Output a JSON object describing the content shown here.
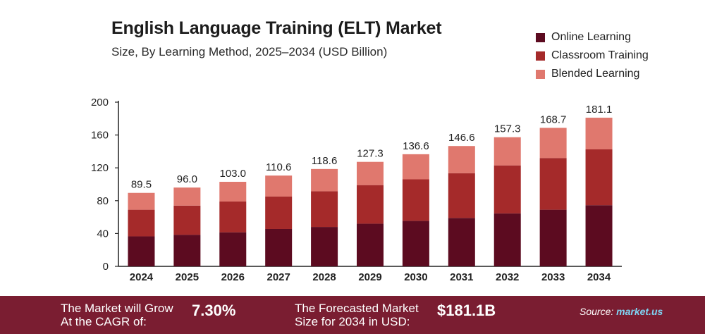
{
  "title": "English Language Training (ELT) Market",
  "subtitle": "Size, By Learning Method, 2025–2034 (USD Billion)",
  "legend": {
    "items": [
      {
        "label": "Online Learning",
        "color": "#5c0b20"
      },
      {
        "label": "Classroom Training",
        "color": "#a52a2a"
      },
      {
        "label": "Blended Learning",
        "color": "#e0786e"
      }
    ]
  },
  "chart_data": {
    "type": "bar",
    "stacked": true,
    "title": "English Language Training (ELT) Market",
    "subtitle": "Size, By Learning Method, 2025–2034 (USD Billion)",
    "categories": [
      "2024",
      "2025",
      "2026",
      "2027",
      "2028",
      "2029",
      "2030",
      "2031",
      "2032",
      "2033",
      "2034"
    ],
    "series": [
      {
        "name": "Online Learning",
        "color": "#5c0b20",
        "values": [
          36.5,
          38.5,
          41.5,
          45.5,
          48.0,
          52.0,
          55.5,
          59.0,
          64.5,
          69.0,
          74.5
        ]
      },
      {
        "name": "Classroom Training",
        "color": "#a52a2a",
        "values": [
          32.5,
          35.5,
          37.5,
          39.5,
          43.5,
          47.0,
          50.5,
          54.5,
          58.5,
          63.0,
          68.0
        ]
      },
      {
        "name": "Blended Learning",
        "color": "#e0786e",
        "values": [
          20.5,
          22.0,
          24.0,
          25.6,
          27.1,
          28.3,
          30.6,
          33.1,
          34.3,
          36.7,
          38.6
        ]
      }
    ],
    "totals": [
      "89.5",
      "96.0",
      "103.0",
      "110.6",
      "118.6",
      "127.3",
      "136.6",
      "146.6",
      "157.3",
      "168.7",
      "181.1"
    ],
    "yticks": [
      "0",
      "40",
      "80",
      "120",
      "160",
      "200"
    ],
    "ylim": [
      0,
      200
    ],
    "grid": false,
    "legend_position": "top-right"
  },
  "footer": {
    "cagr_label_line1": "The Market will Grow",
    "cagr_label_line2": "At the CAGR of:",
    "cagr_value": "7.30%",
    "forecast_label_line1": "The Forecasted Market",
    "forecast_label_line2": "Size for 2034 in USD:",
    "forecast_value": "$181.1B",
    "source_label": "Source:",
    "source_brand": "market.us"
  }
}
